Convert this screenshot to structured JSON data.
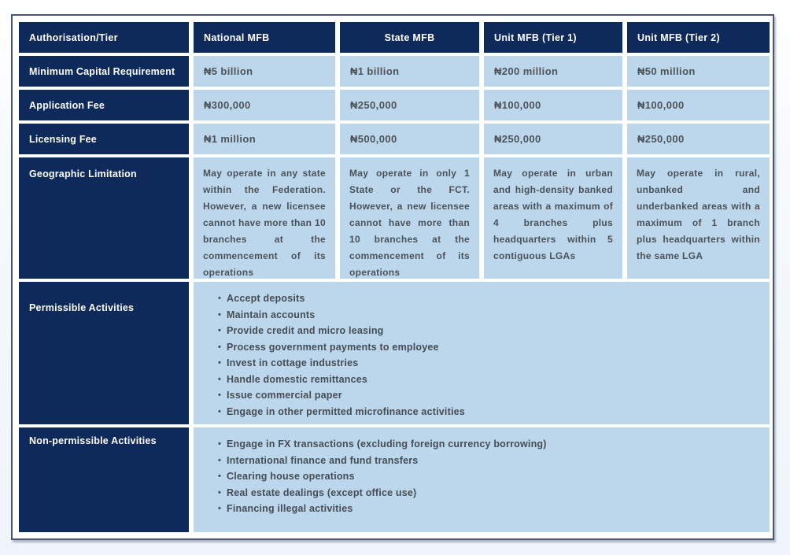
{
  "colors": {
    "navy": "#0e2a5a",
    "light_blue": "#bcd7ec",
    "frame_border": "#4a566e",
    "body_text": "#4b5158"
  },
  "table": {
    "bullet_char": "•",
    "columns": [
      "Authorisation/Tier",
      "National MFB",
      "State MFB",
      "Unit MFB (Tier 1)",
      "Unit MFB (Tier 2)"
    ],
    "rows": [
      {
        "label": "Minimum Capital Requirement",
        "values": [
          "₦5 billion",
          "₦1 billion",
          "₦200 million",
          "₦50 million"
        ]
      },
      {
        "label": "Application Fee",
        "values": [
          "₦300,000",
          "₦250,000",
          "₦100,000",
          "₦100,000"
        ]
      },
      {
        "label": "Licensing Fee",
        "values": [
          "₦1 million",
          "₦500,000",
          "₦250,000",
          "₦250,000"
        ]
      },
      {
        "label": "Geographic Limitation",
        "values": [
          "May operate in any state within the Federation. However, a new licensee cannot have more than 10 branches at the commencement of its operations",
          "May operate in only 1 State or the FCT. However, a new licensee cannot have more than 10 branches at the commencement of its operations",
          "May operate in urban and high-density banked areas with a maximum of 4 branches plus headquarters within 5 contiguous LGAs",
          "May operate in rural, unbanked and underbanked areas with a maximum of 1 branch plus headquarters within the same LGA"
        ]
      },
      {
        "label": "Permissible Activities",
        "bullets": [
          "Accept deposits",
          "Maintain accounts",
          "Provide credit and micro leasing",
          "Process government payments to employee",
          "Invest in cottage industries",
          "Handle domestic remittances",
          "Issue commercial paper",
          "Engage in other permitted microfinance activities"
        ]
      },
      {
        "label": "Non-permissible Activities",
        "bullets": [
          "Engage in FX transactions (excluding foreign currency borrowing)",
          "International finance and fund transfers",
          "Clearing house operations",
          "Real estate dealings (except office use)",
          "Financing illegal activities"
        ]
      }
    ]
  }
}
